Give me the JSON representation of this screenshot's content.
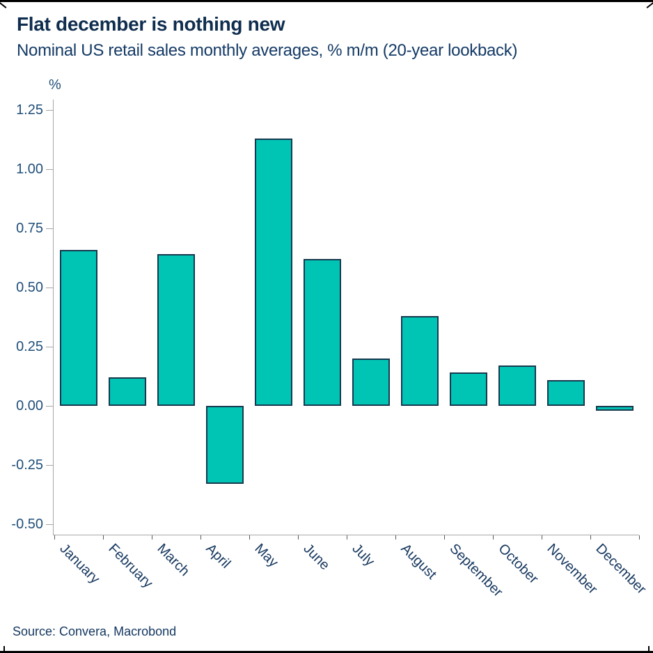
{
  "header": {
    "title": "Flat december is nothing new",
    "subtitle": "Nominal US retail sales monthly averages, % m/m (20-year lookback)"
  },
  "footer": {
    "source": "Source: Convera, Macrobond"
  },
  "chart_data": {
    "type": "bar",
    "title": "Flat december is nothing new",
    "subtitle": "Nominal US retail sales monthly averages, % m/m (20-year lookback)",
    "unit_label": "%",
    "categories": [
      "January",
      "February",
      "March",
      "April",
      "May",
      "June",
      "July",
      "August",
      "September",
      "October",
      "November",
      "December"
    ],
    "values": [
      0.66,
      0.12,
      0.64,
      -0.33,
      1.13,
      0.62,
      0.2,
      0.38,
      0.14,
      0.17,
      0.11,
      -0.02
    ],
    "xlabel": "",
    "ylabel": "%",
    "ylim": [
      -0.5,
      1.25
    ],
    "ytick_labels": [
      "1.25",
      "1.00",
      "0.75",
      "0.50",
      "0.25",
      "0.00",
      "-0.25",
      "-0.50"
    ],
    "grid": false,
    "legend": "none",
    "bar_color": "#00c4b4",
    "bar_border_color": "#17394f",
    "source": "Source: Convera, Macrobond"
  },
  "colors": {
    "title": "#0f2d4e",
    "subtitle": "#143a66",
    "axis_labels": "#1f4e79",
    "month_labels": "#16375e",
    "axis_line": "#a6a6a6",
    "bar_fill": "#00c4b4",
    "bar_outline": "#17394f",
    "frame": "#000000"
  }
}
